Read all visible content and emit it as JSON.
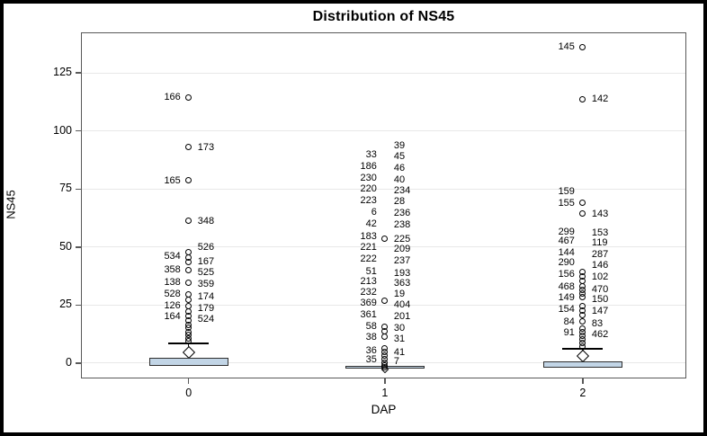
{
  "page": {
    "background": "#ffffff",
    "border_color": "#000000"
  },
  "chart_data": {
    "type": "boxplot",
    "title": "Distribution of NS45",
    "xlabel": "DAP",
    "ylabel": "NS45",
    "ylim": [
      -6.6,
      142.5
    ],
    "y_ticks": [
      0,
      25,
      50,
      75,
      100,
      125
    ],
    "x_categories": [
      "0",
      "1",
      "2"
    ],
    "grid": true,
    "legend": null,
    "colors": {
      "box_fill": "#c2d5e6",
      "box_border": "#2e2e2e",
      "grid": "#e8e8e8",
      "frame": "#595959",
      "point": "#000000",
      "text": "#000000"
    },
    "groups": [
      {
        "category": "0",
        "center_frac": 0.178,
        "box": {
          "lo": -1.2,
          "hi": 2.3,
          "mean": 4.8,
          "whisker_hi": 8.5,
          "mean_size": 10
        },
        "outlier_points": [
          114.6,
          93.0,
          78.7,
          61.3,
          47.8,
          45.6,
          43.6,
          40.0,
          34.5,
          29.8,
          27.4,
          24.7,
          22.4,
          20.4,
          18.5,
          16.6,
          15.1,
          13.5,
          12.0,
          10.6,
          9.4
        ],
        "outlier_labels": [
          {
            "text": "166",
            "value": 114.6,
            "side": "left"
          },
          {
            "text": "173",
            "value": 93.0,
            "side": "right"
          },
          {
            "text": "165",
            "value": 78.7,
            "side": "left"
          },
          {
            "text": "348",
            "value": 61.3,
            "side": "right"
          },
          {
            "text": "526",
            "value": 49.8,
            "side": "right"
          },
          {
            "text": "534",
            "value": 45.9,
            "side": "left"
          },
          {
            "text": "167",
            "value": 43.8,
            "side": "right"
          },
          {
            "text": "358",
            "value": 40.1,
            "side": "left"
          },
          {
            "text": "525",
            "value": 39.2,
            "side": "right"
          },
          {
            "text": "138",
            "value": 34.7,
            "side": "left"
          },
          {
            "text": "359",
            "value": 33.9,
            "side": "right"
          },
          {
            "text": "528",
            "value": 29.7,
            "side": "left"
          },
          {
            "text": "174",
            "value": 28.5,
            "side": "right"
          },
          {
            "text": "126",
            "value": 24.7,
            "side": "left"
          },
          {
            "text": "179",
            "value": 23.7,
            "side": "right"
          },
          {
            "text": "164",
            "value": 20.1,
            "side": "left"
          },
          {
            "text": "524",
            "value": 18.9,
            "side": "right"
          }
        ]
      },
      {
        "category": "1",
        "center_frac": 0.502,
        "box": {
          "lo": -2.2,
          "hi": -1.0,
          "mean": -2.6,
          "whisker_hi": null,
          "mean_size": 6
        },
        "outlier_points": [
          53.6,
          27.0,
          15.8,
          13.9,
          11.6,
          6.4,
          4.8,
          3.2,
          1.6,
          0.2,
          -0.9,
          -1.8
        ],
        "outlier_labels": [
          {
            "text": "39",
            "value": 93.8,
            "side": "right"
          },
          {
            "text": "33",
            "value": 89.9,
            "side": "left"
          },
          {
            "text": "45",
            "value": 89.1,
            "side": "right"
          },
          {
            "text": "186",
            "value": 84.9,
            "side": "left"
          },
          {
            "text": "46",
            "value": 84.1,
            "side": "right"
          },
          {
            "text": "230",
            "value": 79.9,
            "side": "left"
          },
          {
            "text": "40",
            "value": 79.1,
            "side": "right"
          },
          {
            "text": "220",
            "value": 75.2,
            "side": "left"
          },
          {
            "text": "234",
            "value": 74.5,
            "side": "right"
          },
          {
            "text": "223",
            "value": 70.2,
            "side": "left"
          },
          {
            "text": "28",
            "value": 69.5,
            "side": "right"
          },
          {
            "text": "6",
            "value": 65.2,
            "side": "left"
          },
          {
            "text": "236",
            "value": 64.5,
            "side": "right"
          },
          {
            "text": "42",
            "value": 60.2,
            "side": "left"
          },
          {
            "text": "238",
            "value": 59.5,
            "side": "right"
          },
          {
            "text": "183",
            "value": 54.4,
            "side": "left"
          },
          {
            "text": "225",
            "value": 53.6,
            "side": "right"
          },
          {
            "text": "221",
            "value": 49.8,
            "side": "left"
          },
          {
            "text": "209",
            "value": 49.0,
            "side": "right"
          },
          {
            "text": "222",
            "value": 44.8,
            "side": "left"
          },
          {
            "text": "237",
            "value": 44.0,
            "side": "right"
          },
          {
            "text": "51",
            "value": 39.4,
            "side": "left"
          },
          {
            "text": "193",
            "value": 38.6,
            "side": "right"
          },
          {
            "text": "213",
            "value": 35.1,
            "side": "left"
          },
          {
            "text": "363",
            "value": 34.3,
            "side": "right"
          },
          {
            "text": "232",
            "value": 30.5,
            "side": "left"
          },
          {
            "text": "19",
            "value": 29.7,
            "side": "right"
          },
          {
            "text": "369",
            "value": 25.9,
            "side": "left"
          },
          {
            "text": "404",
            "value": 25.1,
            "side": "right"
          },
          {
            "text": "361",
            "value": 20.8,
            "side": "left"
          },
          {
            "text": "201",
            "value": 20.0,
            "side": "right"
          },
          {
            "text": "58",
            "value": 15.8,
            "side": "left"
          },
          {
            "text": "30",
            "value": 15.1,
            "side": "right"
          },
          {
            "text": "38",
            "value": 11.2,
            "side": "left"
          },
          {
            "text": "31",
            "value": 10.4,
            "side": "right"
          },
          {
            "text": "36",
            "value": 5.4,
            "side": "left"
          },
          {
            "text": "41",
            "value": 4.6,
            "side": "right"
          },
          {
            "text": "35",
            "value": 1.5,
            "side": "left"
          },
          {
            "text": "7",
            "value": 0.6,
            "side": "right"
          }
        ]
      },
      {
        "category": "2",
        "center_frac": 0.829,
        "box": {
          "lo": -1.9,
          "hi": 0.8,
          "mean": 2.9,
          "whisker_hi": 6.2,
          "mean_size": 10
        },
        "outlier_points": [
          136.2,
          113.8,
          69.1,
          64.4,
          39.4,
          37.4,
          35.5,
          33.2,
          31.6,
          30.1,
          28.6,
          24.5,
          22.6,
          20.6,
          17.9,
          14.9,
          13.3,
          11.7,
          10.2,
          8.7,
          7.3
        ],
        "outlier_labels": [
          {
            "text": "145",
            "value": 136.2,
            "side": "left"
          },
          {
            "text": "142",
            "value": 113.8,
            "side": "right"
          },
          {
            "text": "159",
            "value": 74.1,
            "side": "left"
          },
          {
            "text": "155",
            "value": 69.1,
            "side": "left"
          },
          {
            "text": "143",
            "value": 64.4,
            "side": "right"
          },
          {
            "text": "299",
            "value": 56.7,
            "side": "left"
          },
          {
            "text": "153",
            "value": 56.1,
            "side": "right"
          },
          {
            "text": "467",
            "value": 52.5,
            "side": "left"
          },
          {
            "text": "119",
            "value": 51.7,
            "side": "right"
          },
          {
            "text": "144",
            "value": 47.8,
            "side": "left"
          },
          {
            "text": "287",
            "value": 47.0,
            "side": "right"
          },
          {
            "text": "290",
            "value": 43.2,
            "side": "left"
          },
          {
            "text": "146",
            "value": 42.1,
            "side": "right"
          },
          {
            "text": "156",
            "value": 38.2,
            "side": "left"
          },
          {
            "text": "102",
            "value": 37.2,
            "side": "right"
          },
          {
            "text": "468",
            "value": 32.8,
            "side": "left"
          },
          {
            "text": "470",
            "value": 31.9,
            "side": "right"
          },
          {
            "text": "149",
            "value": 28.2,
            "side": "left"
          },
          {
            "text": "150",
            "value": 27.3,
            "side": "right"
          },
          {
            "text": "154",
            "value": 23.1,
            "side": "left"
          },
          {
            "text": "147",
            "value": 22.3,
            "side": "right"
          },
          {
            "text": "84",
            "value": 17.7,
            "side": "left"
          },
          {
            "text": "83",
            "value": 17.2,
            "side": "right"
          },
          {
            "text": "91",
            "value": 13.1,
            "side": "left"
          },
          {
            "text": "462",
            "value": 12.2,
            "side": "right"
          }
        ]
      }
    ]
  }
}
